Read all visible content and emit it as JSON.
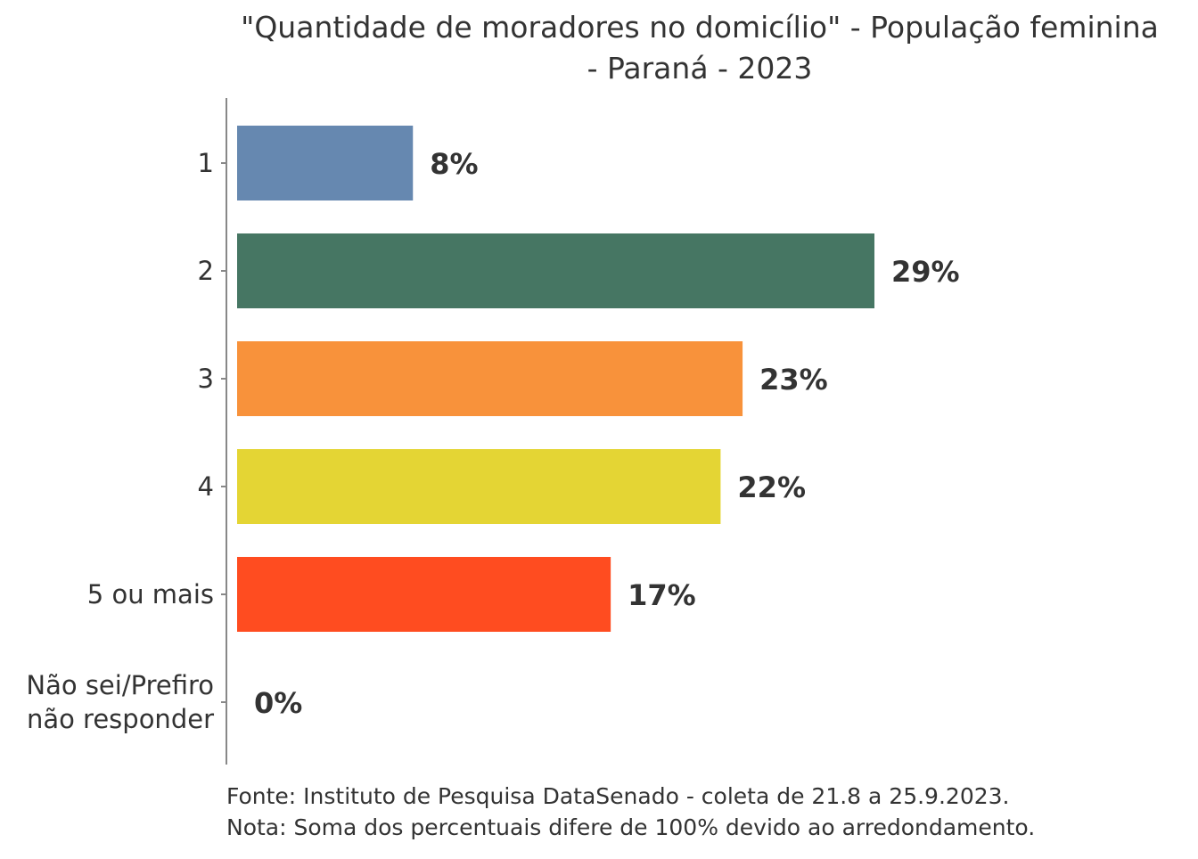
{
  "chart_data": {
    "type": "bar",
    "orientation": "horizontal",
    "title_lines": [
      "\"Quantidade de moradores no domicílio\" - População feminina",
      "- Paraná - 2023"
    ],
    "categories": [
      [
        "1"
      ],
      [
        "2"
      ],
      [
        "3"
      ],
      [
        "4"
      ],
      [
        "5 ou mais"
      ],
      [
        "Não sei/Prefiro",
        "não responder"
      ]
    ],
    "values": [
      8,
      29,
      23,
      22,
      17,
      0
    ],
    "value_labels": [
      "8%",
      "29%",
      "23%",
      "22%",
      "17%",
      "0%"
    ],
    "colors": [
      "#6688b0",
      "#467663",
      "#f8923b",
      "#e4d534",
      "#ff4c20",
      "#9b59b6"
    ],
    "xlim": [
      0,
      29
    ],
    "grid": false,
    "legend": "none",
    "notes": [
      "Fonte: Instituto de Pesquisa DataSenado - coleta de 21.8 a 25.9.2023.",
      "Nota: Soma dos percentuais difere de 100% devido ao arredondamento."
    ]
  }
}
